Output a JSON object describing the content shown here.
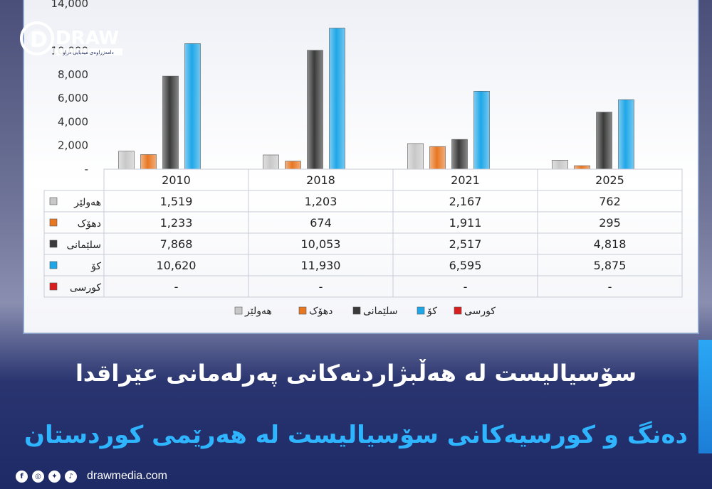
{
  "brand": {
    "name": "DRAW",
    "tagline": "دامەزراوەی میدیایی دراو"
  },
  "headline": "سۆسیالیست لە هەڵبژاردنەکانی پەرلەمانی عێراقدا",
  "subheadline": "دەنگ و کورسیەکانی سۆسیالیست لە هەرێمی کوردستان",
  "footer": {
    "site": "drawmedia.com",
    "icons": [
      "facebook-icon",
      "instagram-icon",
      "twitter-icon",
      "tiktok-icon"
    ]
  },
  "colors": {
    "accent": "#2fb4ff",
    "navy": "#1d2a66"
  },
  "chart_data": {
    "type": "bar",
    "categories": [
      "2010",
      "2018",
      "2021",
      "2025"
    ],
    "series": [
      {
        "name": "هەولێر",
        "values": [
          1519,
          1203,
          2167,
          762
        ],
        "labels": [
          "1,519",
          "1,203",
          "2,167",
          "762"
        ],
        "color": "#c8c8c8"
      },
      {
        "name": "دهۆک",
        "values": [
          1233,
          674,
          1911,
          295
        ],
        "labels": [
          "1,233",
          "674",
          "1,911",
          "295"
        ],
        "color": "#e87722"
      },
      {
        "name": "سلێمانی",
        "values": [
          7868,
          10053,
          2517,
          4818
        ],
        "labels": [
          "7,868",
          "10,053",
          "2,517",
          "4,818"
        ],
        "color": "#3a3a3a"
      },
      {
        "name": "کۆ",
        "values": [
          10620,
          11930,
          6595,
          5875
        ],
        "labels": [
          "10,620",
          "11,930",
          "6,595",
          "5,875"
        ],
        "color": "#1ea7e8"
      },
      {
        "name": "کورسی",
        "values": [
          0,
          0,
          0,
          0
        ],
        "labels": [
          "-",
          "-",
          "-",
          "-"
        ],
        "color": "#d81e1e"
      }
    ],
    "yticks": [
      "-",
      "2,000",
      "4,000",
      "6,000",
      "8,000",
      "10,000",
      "14,000"
    ],
    "ytick_values": [
      0,
      2000,
      4000,
      6000,
      8000,
      10000,
      14000
    ],
    "ylim": [
      0,
      14000
    ],
    "legend": "bottom",
    "data_table": true
  }
}
